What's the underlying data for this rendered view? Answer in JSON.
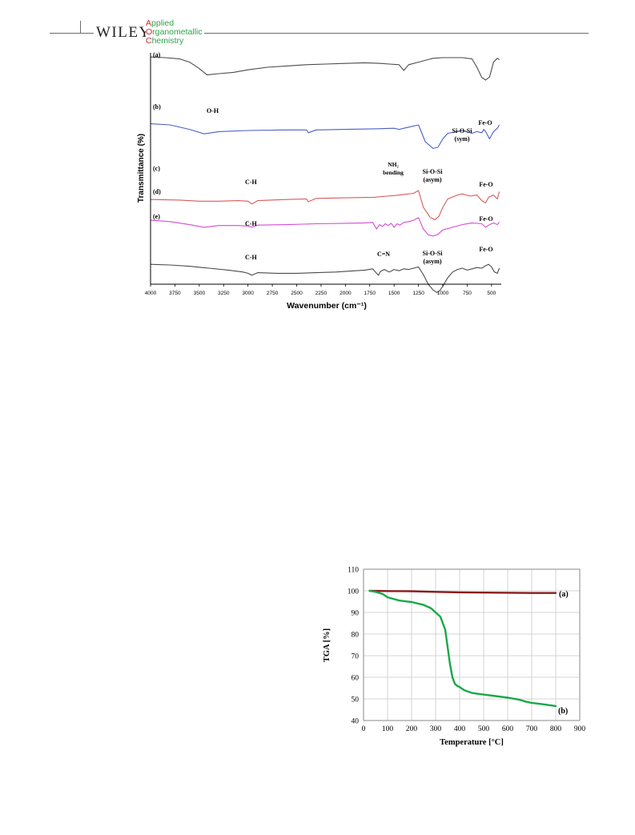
{
  "header": {
    "publisher": "WILEY",
    "journal_lines": [
      {
        "first": "A",
        "rest": "pplied"
      },
      {
        "first": "O",
        "rest": "rganometallic"
      },
      {
        "first": "C",
        "rest": "hemistry"
      }
    ],
    "colors": {
      "journal_green": "#2f9f48",
      "journal_red": "#d2232a"
    }
  },
  "chart_data": [
    {
      "type": "line",
      "xlabel": "Wavenumber (cm⁻¹)",
      "ylabel": "Transmittance (%)",
      "xlim": [
        4000,
        400
      ],
      "x_reversed": true,
      "xticks": [
        4000,
        3750,
        3500,
        3250,
        3000,
        2750,
        2500,
        2250,
        2000,
        1750,
        1500,
        1250,
        1000,
        750,
        500
      ],
      "grid": false,
      "series": [
        {
          "name": "(a)",
          "color": "#4a4a4a",
          "x": [
            4000,
            3850,
            3700,
            3600,
            3500,
            3420,
            3300,
            3150,
            3000,
            2800,
            2600,
            2400,
            2200,
            2000,
            1800,
            1640,
            1550,
            1450,
            1400,
            1350,
            1250,
            1150,
            1100,
            1000,
            900,
            800,
            700,
            650,
            600,
            560,
            520,
            480,
            440,
            420
          ],
          "y": [
            96,
            95,
            93,
            88,
            78,
            68,
            70,
            72,
            76,
            80,
            82,
            84,
            85,
            86,
            87,
            86,
            85,
            84,
            75,
            84,
            88,
            92,
            94,
            95,
            95,
            95,
            93,
            80,
            64,
            60,
            65,
            88,
            94,
            92
          ]
        },
        {
          "name": "(b)",
          "color": "#4a5fc8",
          "x": [
            4000,
            3800,
            3600,
            3450,
            3300,
            3000,
            2600,
            2400,
            2380,
            2300,
            2000,
            1700,
            1500,
            1450,
            1350,
            1250,
            1180,
            1100,
            1050,
            1000,
            950,
            850,
            800,
            700,
            650,
            600,
            580,
            560,
            520,
            480,
            440,
            420
          ],
          "y": [
            72,
            70,
            62,
            54,
            58,
            60,
            61,
            61,
            56,
            61,
            62,
            63,
            64,
            62,
            66,
            70,
            40,
            28,
            30,
            45,
            55,
            58,
            60,
            55,
            58,
            56,
            62,
            58,
            45,
            58,
            64,
            70
          ]
        },
        {
          "name": "(c)",
          "color": "#d95a5a",
          "x": [
            4000,
            3700,
            3500,
            3300,
            3100,
            3000,
            2960,
            2900,
            2600,
            2400,
            2380,
            2300,
            2000,
            1700,
            1580,
            1500,
            1400,
            1300,
            1250,
            1200,
            1130,
            1080,
            1040,
            1000,
            950,
            850,
            800,
            720,
            650,
            600,
            560,
            530,
            480,
            440,
            420
          ],
          "y": [
            44,
            43,
            41,
            41,
            42,
            41,
            36,
            42,
            44,
            45,
            40,
            46,
            47,
            48,
            50,
            51,
            53,
            55,
            60,
            30,
            12,
            8,
            14,
            30,
            45,
            52,
            54,
            50,
            52,
            42,
            38,
            48,
            52,
            45,
            58
          ]
        },
        {
          "name": "(d)",
          "color": "#d54bd2",
          "x": [
            4000,
            3800,
            3600,
            3450,
            3300,
            3100,
            3000,
            2960,
            2900,
            2600,
            2300,
            2000,
            1800,
            1720,
            1680,
            1650,
            1620,
            1590,
            1560,
            1530,
            1500,
            1470,
            1440,
            1400,
            1350,
            1300,
            1250,
            1200,
            1150,
            1100,
            1050,
            1000,
            900,
            800,
            700,
            600,
            560,
            520,
            480,
            440,
            420
          ],
          "y": [
            38,
            35,
            28,
            22,
            26,
            26,
            25,
            22,
            27,
            28,
            30,
            31,
            32,
            33,
            18,
            28,
            24,
            30,
            26,
            31,
            22,
            30,
            27,
            33,
            35,
            38,
            44,
            18,
            5,
            2,
            6,
            16,
            22,
            28,
            32,
            30,
            22,
            28,
            32,
            28,
            34
          ]
        },
        {
          "name": "(e)",
          "color": "#4a4a4a",
          "x": [
            4000,
            3800,
            3600,
            3400,
            3200,
            3050,
            3000,
            2960,
            2900,
            2700,
            2500,
            2300,
            2100,
            1900,
            1800,
            1720,
            1680,
            1660,
            1640,
            1600,
            1550,
            1500,
            1450,
            1400,
            1350,
            1300,
            1250,
            1200,
            1150,
            1100,
            1060,
            1030,
            1000,
            950,
            900,
            850,
            800,
            750,
            700,
            650,
            600,
            560,
            530,
            500,
            470,
            440,
            420
          ],
          "y": [
            26,
            25,
            23,
            20,
            17,
            14,
            12,
            9,
            13,
            12,
            12,
            13,
            14,
            16,
            17,
            19,
            12,
            9,
            15,
            18,
            14,
            18,
            16,
            19,
            18,
            20,
            22,
            10,
            -5,
            -14,
            -18,
            -15,
            -8,
            5,
            14,
            18,
            20,
            17,
            19,
            21,
            20,
            24,
            26,
            22,
            14,
            12,
            20
          ]
        }
      ],
      "annotations": {
        "curve_labels": [
          "(a)",
          "(b)",
          "(c)",
          "(d)",
          "(e)"
        ],
        "band_labels": {
          "oh": "O-H",
          "ch_c": "C-H",
          "ch_d": "C-H",
          "ch_e": "C-H",
          "nh2_line1": "NH₂",
          "nh2_line2": "bending",
          "siosi_asym_c_line1": "Si-O-Si",
          "siosi_asym_c_line2": "(asym)",
          "siosi_sym_line1": "Si-O-Si",
          "siosi_sym_line2": "(sym)",
          "feo_a": "Fe-O",
          "feo_c": "Fe-O",
          "feo_d": "Fe-O",
          "feo_e": "Fe-O",
          "cn": "C=N",
          "siosi_asym_e_line1": "Si-O-Si",
          "siosi_asym_e_line2": "(asym)"
        }
      }
    },
    {
      "type": "line",
      "xlabel": "Temperature [°C]",
      "ylabel": "TGA [%]",
      "xlim": [
        0,
        900
      ],
      "ylim": [
        40,
        110
      ],
      "xticks": [
        0,
        100,
        200,
        300,
        400,
        500,
        600,
        700,
        800,
        900
      ],
      "yticks": [
        40,
        50,
        60,
        70,
        80,
        90,
        100,
        110
      ],
      "grid": true,
      "series": [
        {
          "name": "(a)",
          "color": "#8b1a1a",
          "x": [
            25,
            100,
            200,
            300,
            400,
            500,
            600,
            700,
            800
          ],
          "y": [
            100,
            99.9,
            99.8,
            99.5,
            99.3,
            99.2,
            99.1,
            99.0,
            99.0
          ]
        },
        {
          "name": "(b)",
          "color": "#19a84a",
          "x": [
            25,
            50,
            80,
            100,
            150,
            200,
            250,
            280,
            300,
            320,
            340,
            350,
            360,
            370,
            380,
            390,
            400,
            420,
            450,
            480,
            500,
            550,
            600,
            650,
            680,
            700,
            750,
            800
          ],
          "y": [
            100,
            99.5,
            98.5,
            97,
            95.5,
            94.8,
            93.5,
            92,
            90,
            88,
            82,
            74,
            66,
            60,
            57,
            56,
            55.5,
            54,
            52.8,
            52.3,
            52,
            51.3,
            50.6,
            49.6,
            48.6,
            48.2,
            47.5,
            46.7
          ]
        }
      ]
    }
  ]
}
